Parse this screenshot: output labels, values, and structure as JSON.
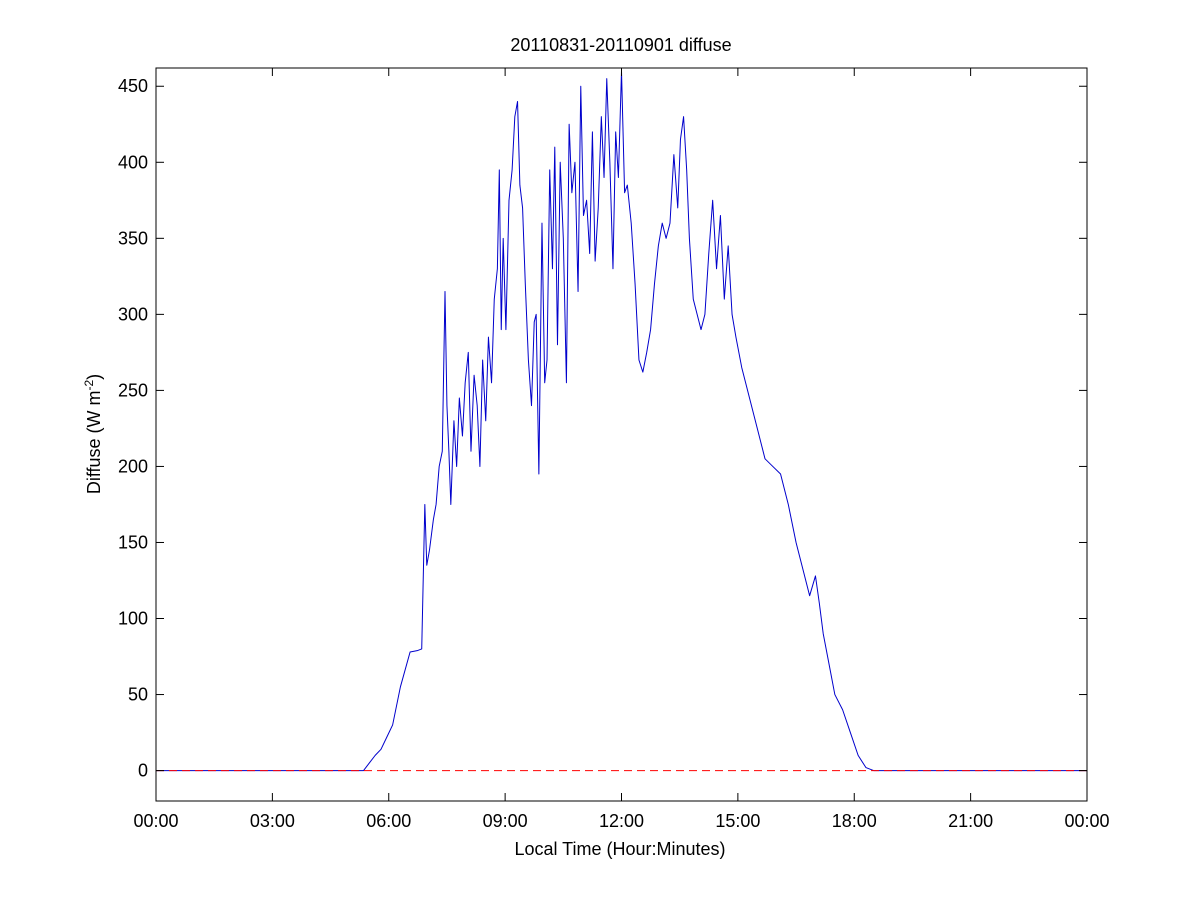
{
  "chart_data": {
    "type": "line",
    "title": "20110831-20110901 diffuse",
    "xlabel": "Local Time (Hour:Minutes)",
    "ylabel": "Diffuse (W m-2)",
    "ylabel_parts": {
      "main": "Diffuse (W m",
      "superscript": "-2",
      "close": ")"
    },
    "xlim": [
      0,
      24
    ],
    "ylim": [
      -20,
      462
    ],
    "x_unit": "hours",
    "x_ticks": [
      0,
      3,
      6,
      9,
      12,
      15,
      18,
      21,
      24
    ],
    "x_tick_labels": [
      "00:00",
      "03:00",
      "06:00",
      "09:00",
      "12:00",
      "15:00",
      "18:00",
      "21:00",
      "00:00"
    ],
    "y_ticks": [
      0,
      50,
      100,
      150,
      200,
      250,
      300,
      350,
      400,
      450
    ],
    "y_tick_labels": [
      "0",
      "50",
      "100",
      "150",
      "200",
      "250",
      "300",
      "350",
      "400",
      "450"
    ],
    "grid": false,
    "legend": "none",
    "series": [
      {
        "color": "#0000cc",
        "style": "solid",
        "x": [
          0,
          5.35,
          5.5,
          5.65,
          5.8,
          5.95,
          6.1,
          6.3,
          6.55,
          6.75,
          6.85,
          6.93,
          6.98,
          7.05,
          7.15,
          7.22,
          7.3,
          7.38,
          7.45,
          7.5,
          7.55,
          7.6,
          7.68,
          7.75,
          7.82,
          7.9,
          7.97,
          8.05,
          8.12,
          8.2,
          8.28,
          8.35,
          8.42,
          8.5,
          8.57,
          8.65,
          8.72,
          8.8,
          8.85,
          8.9,
          8.95,
          9.02,
          9.1,
          9.18,
          9.25,
          9.32,
          9.38,
          9.45,
          9.52,
          9.6,
          9.68,
          9.75,
          9.8,
          9.87,
          9.95,
          10.02,
          10.08,
          10.15,
          10.22,
          10.28,
          10.35,
          10.42,
          10.5,
          10.58,
          10.65,
          10.72,
          10.8,
          10.88,
          10.95,
          11.02,
          11.1,
          11.18,
          11.25,
          11.32,
          11.4,
          11.48,
          11.55,
          11.62,
          11.7,
          11.78,
          11.85,
          11.92,
          12.0,
          12.08,
          12.15,
          12.25,
          12.35,
          12.45,
          12.55,
          12.65,
          12.75,
          12.85,
          12.95,
          13.05,
          13.15,
          13.25,
          13.35,
          13.45,
          13.52,
          13.6,
          13.68,
          13.75,
          13.85,
          13.95,
          14.05,
          14.15,
          14.25,
          14.35,
          14.45,
          14.55,
          14.65,
          14.75,
          14.85,
          14.95,
          15.1,
          15.3,
          15.5,
          15.7,
          15.9,
          16.1,
          16.3,
          16.5,
          16.7,
          16.85,
          17.0,
          17.1,
          17.2,
          17.35,
          17.5,
          17.7,
          17.9,
          18.1,
          18.3,
          18.5,
          18.7,
          24
        ],
        "y": [
          0,
          0,
          5,
          10,
          14,
          22,
          30,
          55,
          78,
          79,
          80,
          175,
          135,
          145,
          165,
          175,
          200,
          210,
          315,
          240,
          210,
          175,
          230,
          200,
          245,
          220,
          255,
          275,
          210,
          260,
          240,
          200,
          270,
          230,
          285,
          255,
          310,
          330,
          395,
          290,
          350,
          290,
          375,
          395,
          430,
          440,
          385,
          370,
          320,
          270,
          240,
          295,
          300,
          195,
          360,
          255,
          270,
          395,
          330,
          410,
          280,
          400,
          350,
          255,
          425,
          380,
          400,
          315,
          450,
          365,
          375,
          340,
          420,
          335,
          370,
          430,
          390,
          455,
          400,
          330,
          420,
          390,
          460,
          380,
          385,
          360,
          320,
          270,
          262,
          275,
          290,
          320,
          345,
          360,
          350,
          360,
          405,
          370,
          415,
          430,
          395,
          350,
          310,
          300,
          290,
          300,
          340,
          375,
          330,
          365,
          310,
          345,
          300,
          285,
          265,
          245,
          225,
          205,
          200,
          195,
          175,
          150,
          130,
          115,
          128,
          110,
          90,
          70,
          50,
          40,
          25,
          10,
          2,
          0,
          0,
          0
        ]
      },
      {
        "color": "#ff0000",
        "style": "dashed",
        "x": [
          0,
          24
        ],
        "y": [
          0,
          0
        ]
      }
    ]
  }
}
